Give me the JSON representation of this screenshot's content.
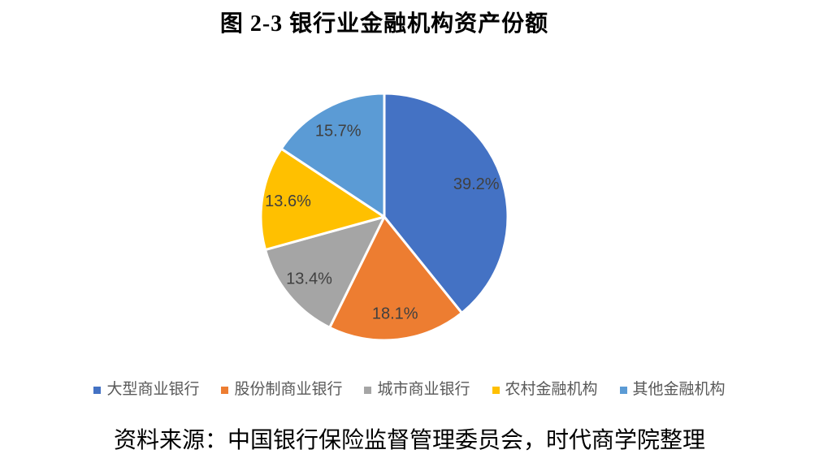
{
  "figure": {
    "title": "图 2-3 银行业金融机构资产份额",
    "source_note": "资料来源：中国银行保险监督管理委员会，时代商学院整理"
  },
  "chart_data": {
    "type": "pie",
    "title": "图 2-3 银行业金融机构资产份额",
    "categories": [
      "大型商业银行",
      "股份制商业银行",
      "城市商业银行",
      "农村金融机构",
      "其他金融机构"
    ],
    "values": [
      39.2,
      18.1,
      13.4,
      13.6,
      15.7
    ],
    "data_labels": [
      "39.2%",
      "18.1%",
      "13.4%",
      "13.6%",
      "15.7%"
    ],
    "colors": [
      "#4472C4",
      "#ED7D31",
      "#A5A5A5",
      "#FFC000",
      "#5B9BD5"
    ],
    "start_angle_deg": 0,
    "direction": "clockwise",
    "slice_border_color": "#FFFFFF",
    "data_label_color": "#404040",
    "legend_position": "bottom",
    "legend_text_color": "#595959"
  }
}
